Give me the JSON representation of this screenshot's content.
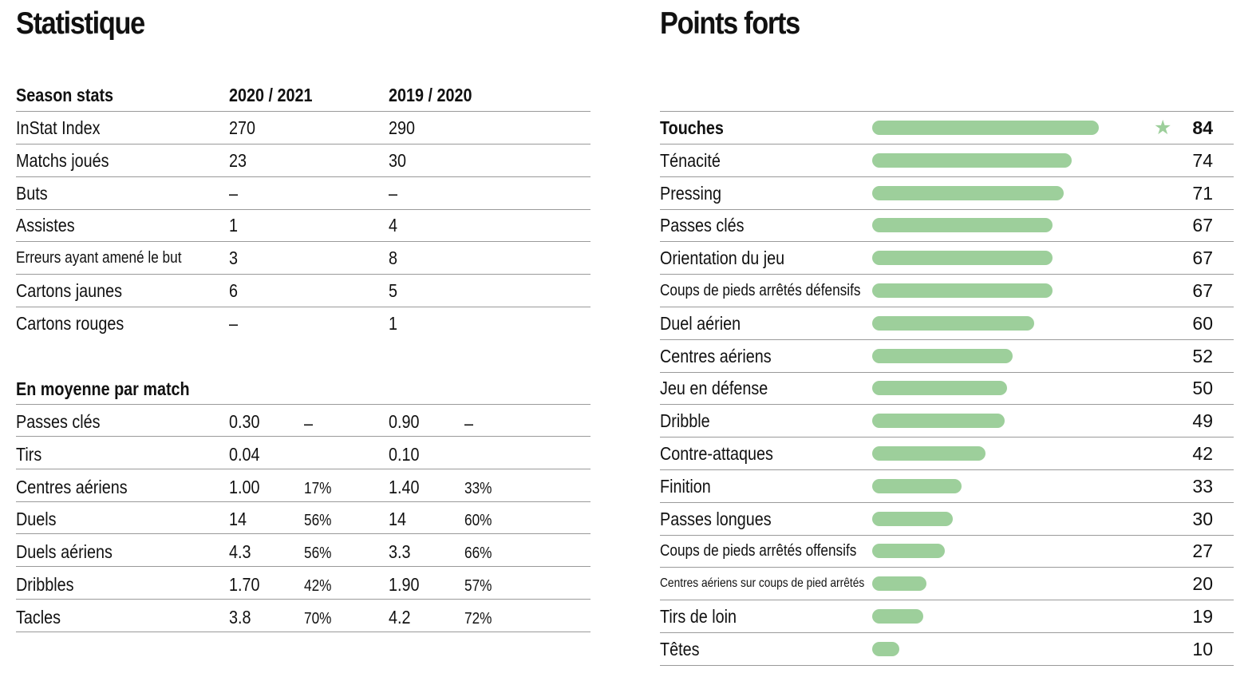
{
  "statistique": {
    "title": "Statistique",
    "season": {
      "header": [
        "Season stats",
        "2020 / 2021",
        "2019 / 2020"
      ],
      "rows": [
        {
          "label": "InStat Index",
          "a": "270",
          "b": "290"
        },
        {
          "label": "Matchs joués",
          "a": "23",
          "b": "30"
        },
        {
          "label": "Buts",
          "a": "–",
          "b": "–"
        },
        {
          "label": "Assistes",
          "a": "1",
          "b": "4"
        },
        {
          "label": "Erreurs ayant amené le but",
          "a": "3",
          "b": "8"
        },
        {
          "label": "Cartons jaunes",
          "a": "6",
          "b": "5"
        },
        {
          "label": "Cartons rouges",
          "a": "–",
          "b": "1"
        }
      ]
    },
    "average": {
      "header": "En moyenne par match",
      "rows": [
        {
          "label": "Passes clés",
          "a": "0.30",
          "ap": "–",
          "b": "0.90",
          "bp": "–"
        },
        {
          "label": "Tirs",
          "a": "0.04",
          "ap": "",
          "b": "0.10",
          "bp": ""
        },
        {
          "label": "Centres aériens",
          "a": "1.00",
          "ap": "17%",
          "b": "1.40",
          "bp": "33%"
        },
        {
          "label": "Duels",
          "a": "14",
          "ap": "56%",
          "b": "14",
          "bp": "60%"
        },
        {
          "label": "Duels aériens",
          "a": "4.3",
          "ap": "56%",
          "b": "3.3",
          "bp": "66%"
        },
        {
          "label": "Dribbles",
          "a": "1.70",
          "ap": "42%",
          "b": "1.90",
          "bp": "57%"
        },
        {
          "label": "Tacles",
          "a": "3.8",
          "ap": "70%",
          "b": "4.2",
          "bp": "72%"
        }
      ]
    }
  },
  "points_forts": {
    "title": "Points forts",
    "accent_color": "#9dcf9b",
    "star_icon": "star-icon",
    "items": [
      {
        "label": "Touches",
        "value": 84,
        "text": "84",
        "highlight": true
      },
      {
        "label": "Ténacité",
        "value": 74,
        "text": "74"
      },
      {
        "label": "Pressing",
        "value": 71,
        "text": "71"
      },
      {
        "label": "Passes clés",
        "value": 67,
        "text": "67"
      },
      {
        "label": "Orientation du jeu",
        "value": 67,
        "text": "67"
      },
      {
        "label": "Coups de pieds arrêtés défensifs",
        "value": 67,
        "text": "67"
      },
      {
        "label": "Duel aérien",
        "value": 60,
        "text": "60"
      },
      {
        "label": "Centres aériens",
        "value": 52,
        "text": "52"
      },
      {
        "label": "Jeu en défense",
        "value": 50,
        "text": "50"
      },
      {
        "label": "Dribble",
        "value": 49,
        "text": "49"
      },
      {
        "label": "Contre-attaques",
        "value": 42,
        "text": "42"
      },
      {
        "label": "Finition",
        "value": 33,
        "text": "33"
      },
      {
        "label": "Passes longues",
        "value": 30,
        "text": "30"
      },
      {
        "label": "Coups de pieds arrêtés offensifs",
        "value": 27,
        "text": "27"
      },
      {
        "label": "Centres aériens sur coups de pied arrêtés",
        "value": 20,
        "text": "20"
      },
      {
        "label": "Tirs de loin",
        "value": 19,
        "text": "19"
      },
      {
        "label": "Têtes",
        "value": 10,
        "text": "10"
      }
    ]
  }
}
